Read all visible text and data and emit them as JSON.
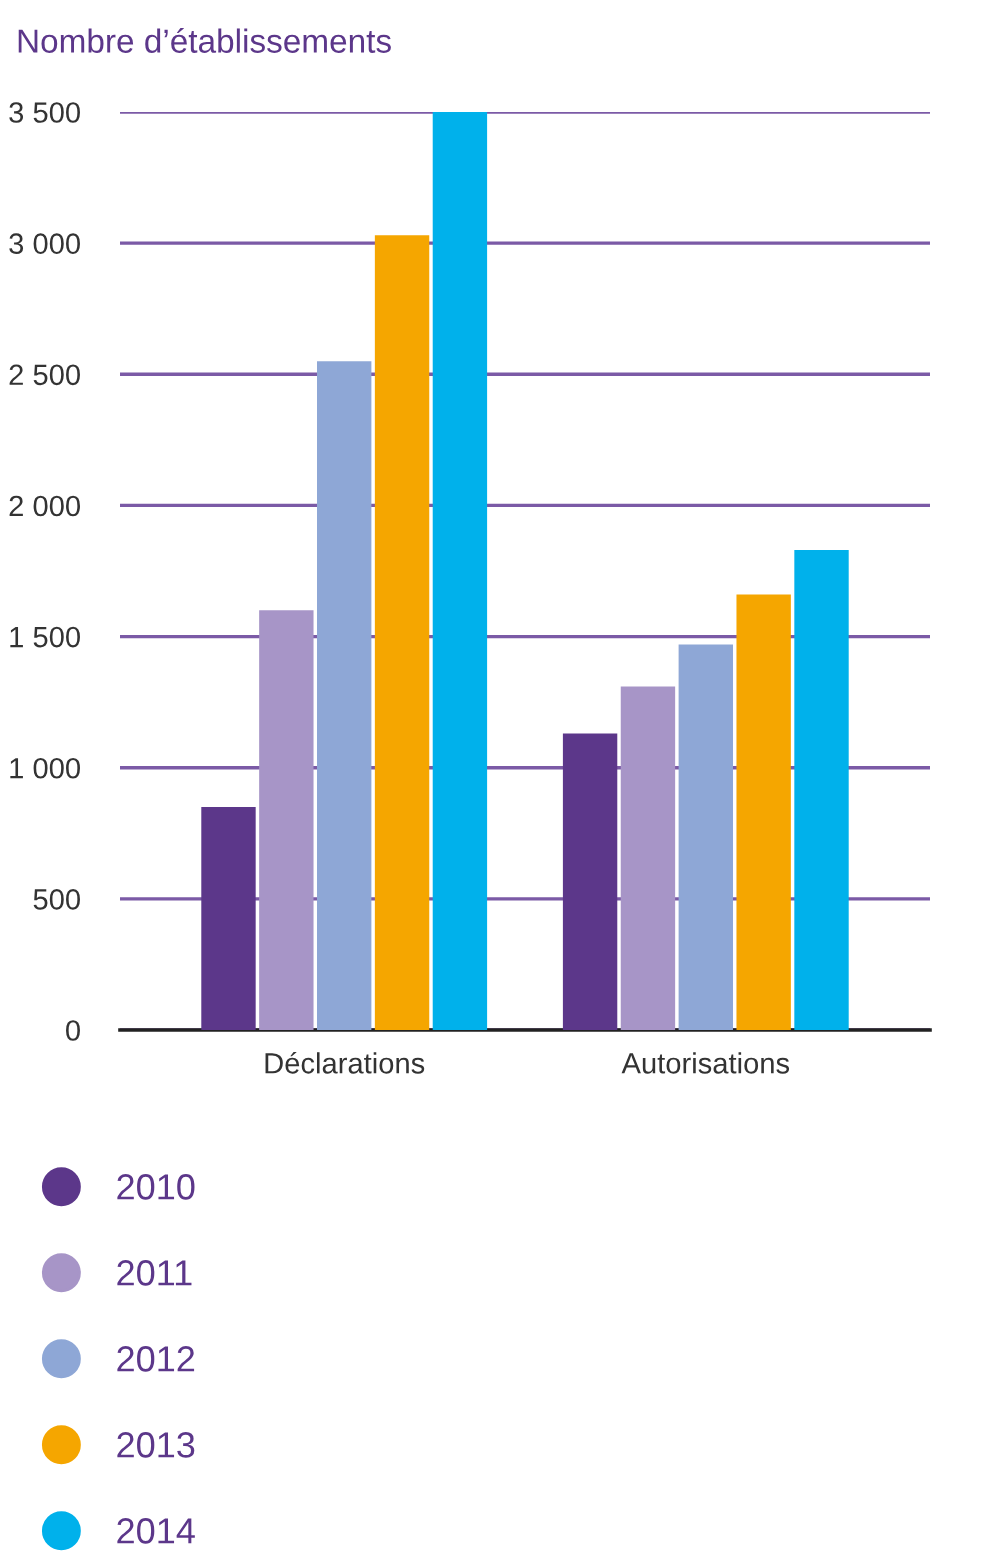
{
  "chart_data": {
    "type": "bar",
    "ylabel": "Nombre d’établissements",
    "categories": [
      "Déclarations",
      "Autorisations"
    ],
    "series": [
      {
        "name": "2010",
        "color": "#5c378a",
        "values": [
          850,
          1130
        ]
      },
      {
        "name": "2011",
        "color": "#a795c7",
        "values": [
          1600,
          1310
        ]
      },
      {
        "name": "2012",
        "color": "#8ea7d6",
        "values": [
          2550,
          1470
        ]
      },
      {
        "name": "2013",
        "color": "#f5a600",
        "values": [
          3030,
          1660
        ]
      },
      {
        "name": "2014",
        "color": "#00b1eb",
        "values": [
          3500,
          1830
        ]
      }
    ],
    "ylim": [
      0,
      3500
    ],
    "yticks": [
      0,
      {
        "value": 500,
        "label": "500"
      },
      {
        "value": 1000,
        "label": "1 000"
      },
      {
        "value": 1500,
        "label": "1 500"
      },
      {
        "value": 2000,
        "label": "2 000"
      },
      {
        "value": 2500,
        "label": "2 500"
      },
      {
        "value": 3000,
        "label": "3 000"
      },
      {
        "value": 3500,
        "label": "3 500"
      }
    ],
    "grid": "y",
    "legend": "bottom"
  }
}
